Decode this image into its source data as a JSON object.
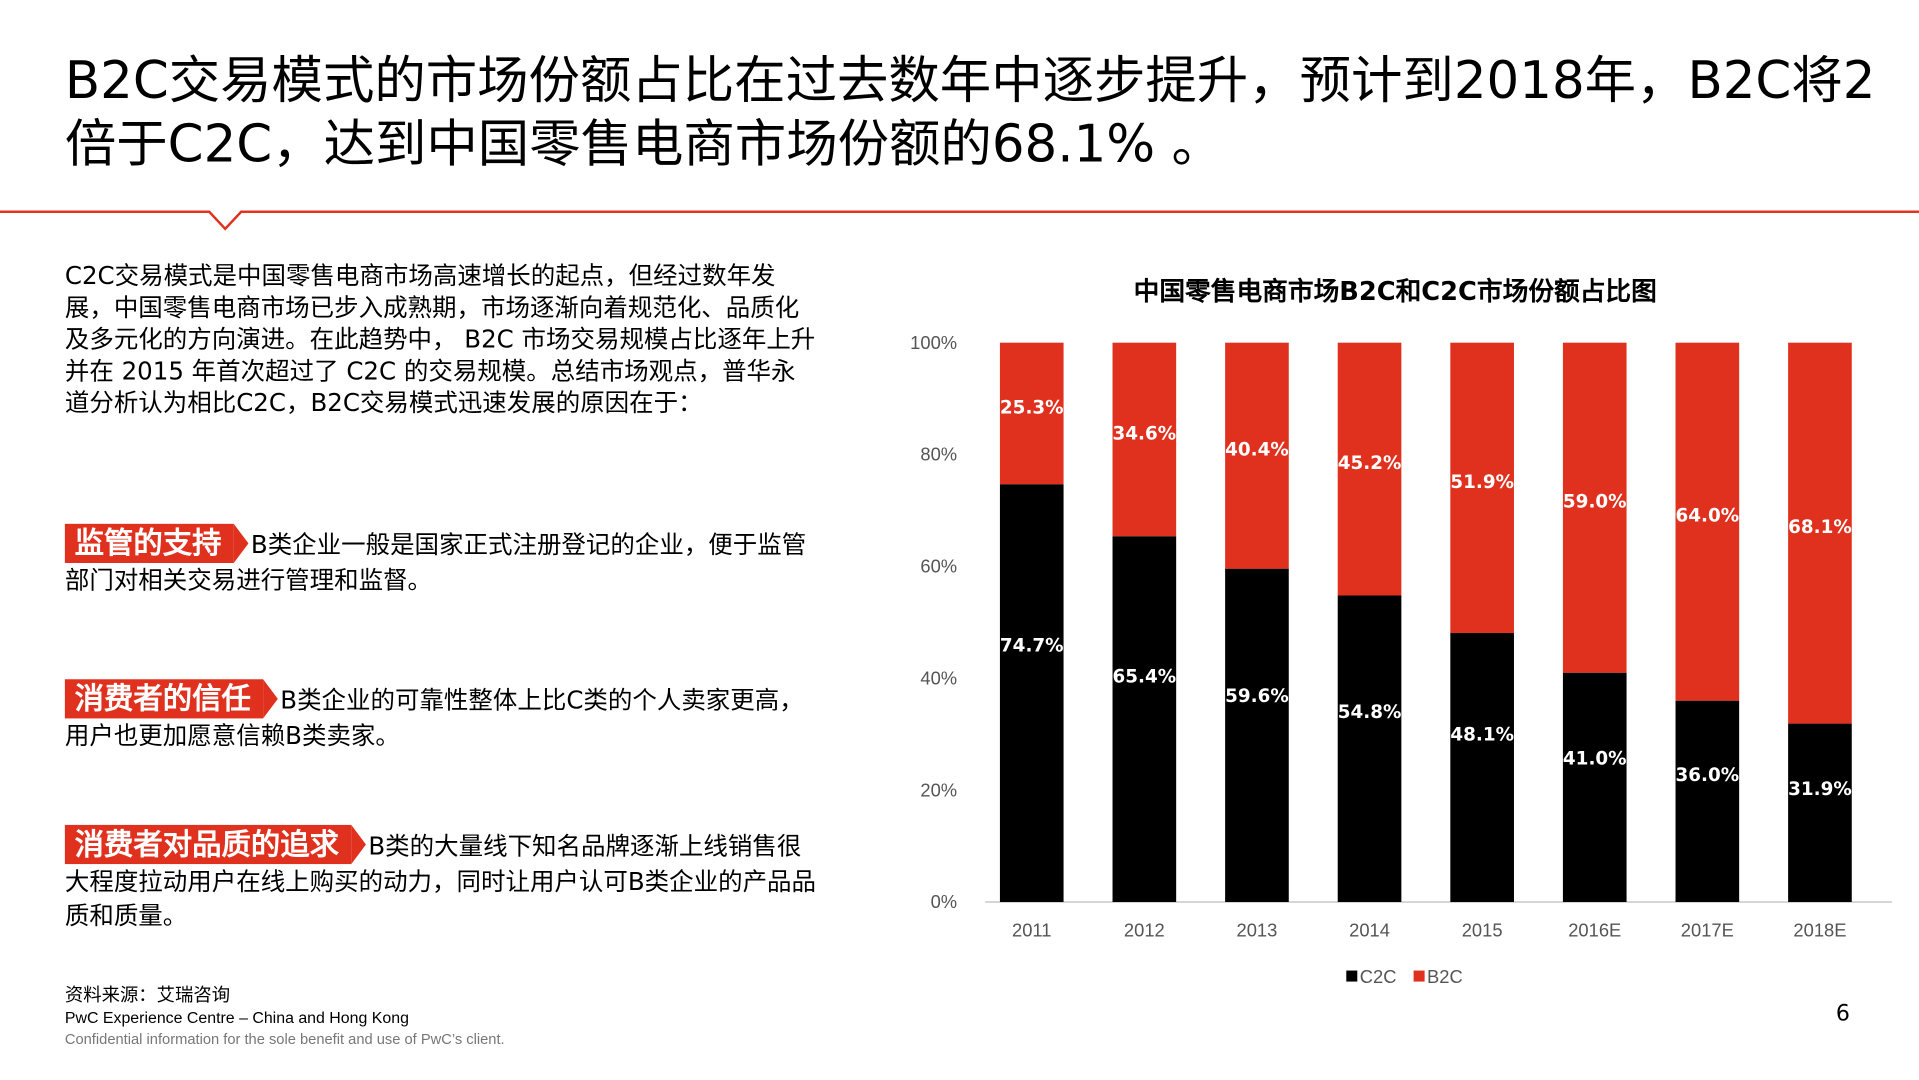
{
  "title": "B2C交易模式的市场份额占比在过去数年中逐步提升，预计到2018年，B2C将2倍于C2C，达到中国零售电商市场份额的68.1% 。",
  "intro": "C2C交易模式是中国零售电商市场高速增长的起点，但经过数年发展，中国零售电商市场已步入成熟期，市场逐渐向着规范化、品质化及多元化的方向演进。在此趋势中， B2C 市场交易规模占比逐年上升并在 2015 年首次超过了 C2C 的交易规模。总结市场观点，普华永道分析认为相比C2C，B2C交易模式迅速发展的原因在于：",
  "points": [
    {
      "tag": "监管的支持",
      "text": "B类企业一般是国家正式注册登记的企业，便于监管部门对相关交易进行管理和监督。"
    },
    {
      "tag": "消费者的信任",
      "text": "B类企业的可靠性整体上比C类的个人卖家更高，用户也更加愿意信赖B类卖家。"
    },
    {
      "tag": "消费者对品质的追求",
      "text": "B类的大量线下知名品牌逐渐上线销售很大程度拉动用户在线上购买的动力，同时让用户认可B类企业的产品品质和质量。"
    }
  ],
  "source": "资料来源：艾瑞咨询",
  "footer_line1": "PwC Experience Centre – China and Hong Kong",
  "footer_line2": "Confidential information for the sole benefit and use of PwC’s client.",
  "page_number": "6",
  "colors": {
    "accent": "#e0301e",
    "c2c": "#000000",
    "b2c": "#e0301e"
  },
  "chart_data": {
    "type": "bar",
    "stacked": true,
    "title": "中国零售电商市场B2C和C2C市场份额占比图",
    "categories": [
      "2011",
      "2012",
      "2013",
      "2014",
      "2015",
      "2016E",
      "2017E",
      "2018E"
    ],
    "series": [
      {
        "name": "C2C",
        "values": [
          74.7,
          65.4,
          59.6,
          54.8,
          48.1,
          41.0,
          36.0,
          31.9
        ],
        "color": "#000000"
      },
      {
        "name": "B2C",
        "values": [
          25.3,
          34.6,
          40.4,
          45.2,
          51.9,
          59.0,
          64.0,
          68.1
        ],
        "color": "#e0301e"
      }
    ],
    "yticks": [
      "0%",
      "20%",
      "40%",
      "60%",
      "80%",
      "100%"
    ],
    "ylim": [
      0,
      100
    ],
    "grid": false,
    "legend": "bottom"
  }
}
